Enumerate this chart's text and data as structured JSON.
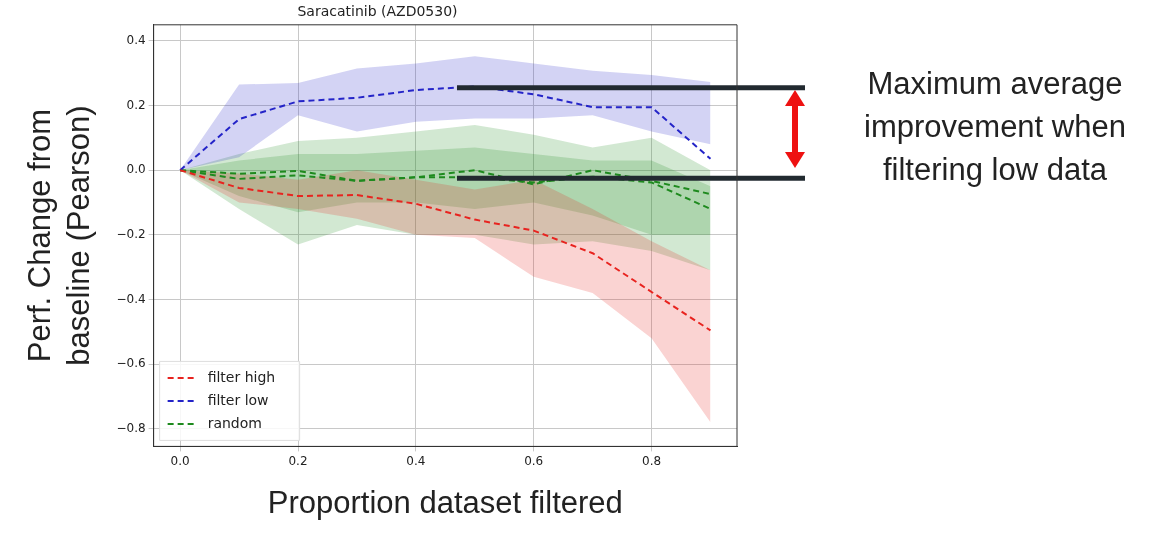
{
  "chart_data": {
    "type": "line",
    "title": "Saracatinib (AZD0530)",
    "xlabel": "Proportion dataset filtered",
    "ylabel": "Perf. Change from baseline (Pearson)",
    "x": [
      0,
      0.1,
      0.2,
      0.3,
      0.4,
      0.5,
      0.6,
      0.7,
      0.8,
      0.9
    ],
    "series": [
      {
        "name": "filter high",
        "color": "#e8231f",
        "values": [
          0,
          -0.055,
          -0.08,
          -0.077,
          -0.104,
          -0.153,
          -0.187,
          -0.257,
          -0.377,
          -0.496
        ],
        "lower": [
          0,
          -0.1,
          -0.12,
          -0.15,
          -0.2,
          -0.21,
          -0.33,
          -0.38,
          -0.52,
          -0.78
        ],
        "upper": [
          0,
          -0.01,
          -0.03,
          0,
          -0.03,
          -0.06,
          -0.03,
          -0.12,
          -0.22,
          -0.31
        ]
      },
      {
        "name": "filter low",
        "color": "#2424c8",
        "values": [
          0,
          0.158,
          0.213,
          0.224,
          0.248,
          0.259,
          0.235,
          0.195,
          0.195,
          0.035
        ],
        "lower": [
          0,
          0.04,
          0.17,
          0.12,
          0.15,
          0.16,
          0.16,
          0.17,
          0.12,
          0.08
        ],
        "upper": [
          0,
          0.265,
          0.27,
          0.315,
          0.33,
          0.353,
          0.33,
          0.308,
          0.295,
          0.273
        ]
      },
      {
        "name": "random",
        "color": "#1e8a1e",
        "values": [
          0,
          -0.011,
          -0.002,
          -0.033,
          -0.022,
          0,
          -0.044,
          0,
          -0.033,
          -0.074
        ],
        "lower": [
          0,
          -0.08,
          -0.13,
          -0.1,
          -0.1,
          -0.12,
          -0.1,
          -0.14,
          -0.2,
          -0.2
        ],
        "upper": [
          0,
          0.05,
          0.09,
          0.1,
          0.12,
          0.14,
          0.11,
          0.07,
          0.1,
          0
        ]
      },
      {
        "color": "#1e8a1e",
        "values": [
          0,
          -0.027,
          -0.016,
          -0.033,
          -0.022,
          -0.022,
          -0.038,
          -0.02,
          -0.038,
          -0.12
        ],
        "lower": [
          0,
          -0.12,
          -0.23,
          -0.17,
          -0.2,
          -0.2,
          -0.23,
          -0.22,
          -0.25,
          -0.31
        ],
        "upper": [
          0,
          0.03,
          0.05,
          0.05,
          0.06,
          0.07,
          0.05,
          0.03,
          0.03,
          -0.05
        ]
      }
    ],
    "xlim": [
      -0.045,
      0.945
    ],
    "ylim": [
      -0.855,
      0.45
    ],
    "xticks": [
      {
        "value": 0,
        "label": "0.0"
      },
      {
        "value": 0.2,
        "label": "0.2"
      },
      {
        "value": 0.4,
        "label": "0.4"
      },
      {
        "value": 0.6,
        "label": "0.6"
      },
      {
        "value": 0.8,
        "label": "0.8"
      }
    ],
    "yticks": [
      {
        "value": -0.8,
        "label": "−0.8"
      },
      {
        "value": -0.6,
        "label": "−0.6"
      },
      {
        "value": -0.4,
        "label": "−0.4"
      },
      {
        "value": -0.2,
        "label": "−0.2"
      },
      {
        "value": 0,
        "label": "0.0"
      },
      {
        "value": 0.2,
        "label": "0.2"
      },
      {
        "value": 0.4,
        "label": "0.4"
      }
    ],
    "grid": true,
    "legend": "bottom left",
    "marker": "none",
    "line_style": "dashed",
    "ref_lines": [
      {
        "axis": "y",
        "value": 0.255,
        "color": "#222a30"
      },
      {
        "axis": "y",
        "value": -0.025,
        "color": "#222a30"
      }
    ],
    "annotations": [
      "Maximum average improvement when filtering low data"
    ]
  }
}
